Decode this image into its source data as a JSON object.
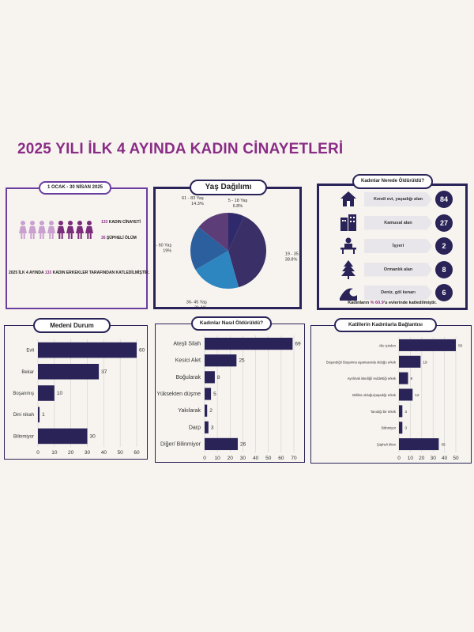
{
  "title": "2025 YILI İLK 4 AYINDA KADIN CİNAYETLERİ",
  "summary": {
    "date_range": "1 OCAK - 30 NİSAN 2025",
    "killed_label": "KADIN CİNAYETİ",
    "killed_count": "133",
    "suspicious_label": "ŞÜPHELİ ÖLÜM",
    "suspicious_count": "35",
    "statement_pre": "2025 İLK 4 AYINDA",
    "statement_count": "133",
    "statement_post": "KADIN ERKEKLER TARAFINDAN KATLEDİLMİŞTİR.",
    "figure_count": 8,
    "light_figures": 4,
    "light_color": "#c9a0d0",
    "dark_color": "#7a2d7a"
  },
  "location": {
    "title": "Kadınlar Nerede Öldürüldü?",
    "items": [
      {
        "label": "Kendi evi, yaşadığı alan",
        "count": "84",
        "icon": "house-icon"
      },
      {
        "label": "Kamusal alan",
        "count": "27",
        "icon": "buildings-icon"
      },
      {
        "label": "İşyeri",
        "count": "2",
        "icon": "office-desk-icon"
      },
      {
        "label": "Ormanlık alan",
        "count": "8",
        "icon": "tree-icon"
      },
      {
        "label": "Deniz, göl kenarı",
        "count": "6",
        "icon": "wave-icon"
      }
    ],
    "footer_pre": "Kadınların",
    "footer_pct": "% 60.9",
    "footer_post": "'u evlerinde katledilmiştir."
  },
  "colors": {
    "navy": "#2a2358",
    "purple": "#6b3fa0",
    "accent": "#8a2c86"
  },
  "chart_data": [
    {
      "type": "pie",
      "title": "Yaş Dağılımı",
      "slices": [
        {
          "label": "19 - 35 Yaş",
          "pct_label": "38.8%",
          "value": 38.8,
          "color": "#3a2f66"
        },
        {
          "label": "36- 45 Yaş",
          "pct_label": "21.1%",
          "value": 21.1,
          "color": "#2e86c1"
        },
        {
          "label": "46 - 60 Yaş",
          "pct_label": "19%",
          "value": 19.0,
          "color": "#2c5f9e"
        },
        {
          "label": "61 - 83 Yaş",
          "pct_label": "14.3%",
          "value": 14.3,
          "color": "#5c3d78"
        },
        {
          "label": "5 - 18 Yaş",
          "pct_label": "6.8%",
          "value": 6.8,
          "color": "#2f2a6b"
        }
      ]
    },
    {
      "type": "bar",
      "title": "Medeni Durum",
      "categories": [
        "Evli",
        "Bekar",
        "Boşanmış",
        "Dini nikah",
        "Bilinmiyor"
      ],
      "values": [
        60,
        37,
        10,
        1,
        30
      ],
      "xlim": [
        0,
        60
      ],
      "ticks": [
        0,
        10,
        20,
        30,
        40,
        50,
        60
      ],
      "grid": true
    },
    {
      "type": "bar",
      "title": "Kadınlar Nasıl Öldürüldü?",
      "categories": [
        "Ateşli Silah",
        "Kesici Alet",
        "Boğularak",
        "Yüksekten düşme",
        "Yakılarak",
        "Darp",
        "Diğer/ Bilinmiyor"
      ],
      "values": [
        69,
        25,
        8,
        5,
        2,
        3,
        26
      ],
      "xlim": [
        0,
        70
      ],
      "ticks": [
        0,
        10,
        20,
        30,
        40,
        50,
        60,
        70
      ],
      "grid": true
    },
    {
      "type": "bar",
      "title": "Katillerin Kadınlarla Bağlantısı",
      "categories": [
        "Aile içinden",
        "Boşandığı/ Boşanma aşamasında olduğu erkek",
        "Ayrılmak istediği/ reddettiği erkek",
        "Birlikte olduğu/yaşadığı erkek",
        "Tanıdığı bir erkek",
        "Bilinmiyor",
        "Şüpheli ölüm"
      ],
      "values": [
        50,
        19,
        8,
        12,
        3,
        3,
        35
      ],
      "xlim": [
        0,
        50
      ],
      "ticks": [
        0,
        10,
        20,
        30,
        40,
        50
      ],
      "grid": true
    }
  ]
}
